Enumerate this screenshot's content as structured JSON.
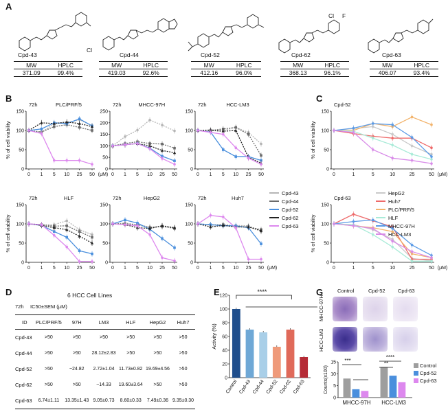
{
  "panels": {
    "a": "A",
    "b": "B",
    "c": "C",
    "d": "D",
    "e": "E",
    "g": "G"
  },
  "colors": {
    "cpd43": "#b5b5b5",
    "cpd44": "#6b6b6b",
    "cpd52": "#4a8fdd",
    "cpd62": "#222222",
    "cpd63": "#dd88ee",
    "hepg2": "#c9c9c9",
    "huh7": "#ee6a6a",
    "plc": "#f2b36b",
    "hlf": "#a9ebd8",
    "mhcc": "#5b9be6",
    "hcclm3": "#d88be8"
  },
  "compounds": [
    {
      "name": "Cpd-43",
      "mw_header": "MW",
      "hplc_header": "HPLC",
      "mw": "371.09",
      "hplc": "99.4%"
    },
    {
      "name": "Cpd-44",
      "mw_header": "MW",
      "hplc_header": "HPLC",
      "mw": "419.03",
      "hplc": "92.6%",
      "sub": "Cl"
    },
    {
      "name": "Cpd-52",
      "mw_header": "MW",
      "hplc_header": "HPLC",
      "mw": "412.16",
      "hplc": "96.0%"
    },
    {
      "name": "Cpd-62",
      "mw_header": "MW",
      "hplc_header": "HPLC",
      "mw": "368.13",
      "hplc": "96.1%",
      "sub": "Cl",
      "sub2": "F"
    },
    {
      "name": "Cpd-63",
      "mw_header": "MW",
      "hplc_header": "HPLC",
      "mw": "406.07",
      "hplc": "93.4%"
    }
  ],
  "chart_data": [
    {
      "type": "line",
      "title": "PLC/PRF/5",
      "time": "72h",
      "xlabel": "(μM)",
      "ylabel": "% of cell viability",
      "categories": [
        "0",
        "1",
        "5",
        "10",
        "25",
        "50"
      ],
      "ylim": [
        0,
        150
      ],
      "yticks": [
        "0",
        "50",
        "100",
        "150"
      ],
      "series": [
        {
          "name": "Cpd-43",
          "values": [
            100,
            95,
            118,
            120,
            128,
            112
          ]
        },
        {
          "name": "Cpd-44",
          "values": [
            100,
            96,
            110,
            115,
            108,
            100
          ]
        },
        {
          "name": "Cpd-52",
          "values": [
            100,
            104,
            120,
            118,
            130,
            112
          ]
        },
        {
          "name": "Cpd-62",
          "values": [
            100,
            120,
            118,
            122,
            118,
            110
          ]
        },
        {
          "name": "Cpd-63",
          "values": [
            100,
            92,
            22,
            22,
            22,
            12
          ]
        }
      ]
    },
    {
      "type": "line",
      "title": "MHCC-97H",
      "time": "72h",
      "xlabel": "",
      "ylabel": "",
      "categories": [
        "0",
        "1",
        "5",
        "10",
        "25",
        "50"
      ],
      "ylim": [
        0,
        250
      ],
      "yticks": [
        "0",
        "50",
        "100",
        "150",
        "200",
        "250"
      ],
      "series": [
        {
          "name": "Cpd-43",
          "values": [
            100,
            140,
            168,
            212,
            190,
            165
          ]
        },
        {
          "name": "Cpd-44",
          "values": [
            100,
            110,
            118,
            110,
            108,
            90
          ]
        },
        {
          "name": "Cpd-52",
          "values": [
            100,
            105,
            110,
            90,
            55,
            35
          ]
        },
        {
          "name": "Cpd-62",
          "values": [
            100,
            105,
            110,
            100,
            80,
            70
          ]
        },
        {
          "name": "Cpd-63",
          "values": [
            100,
            105,
            110,
            88,
            45,
            20
          ]
        }
      ]
    },
    {
      "type": "line",
      "title": "HCC-LM3",
      "time": "72h",
      "xlabel": "",
      "ylabel": "",
      "categories": [
        "0",
        "1",
        "5",
        "10",
        "25",
        "50"
      ],
      "ylim": [
        0,
        150
      ],
      "yticks": [
        "0",
        "50",
        "100",
        "150"
      ],
      "series": [
        {
          "name": "Cpd-43",
          "values": [
            100,
            102,
            100,
            108,
            95,
            65
          ]
        },
        {
          "name": "Cpd-44",
          "values": [
            100,
            100,
            104,
            108,
            90,
            35
          ]
        },
        {
          "name": "Cpd-52",
          "values": [
            100,
            96,
            50,
            32,
            32,
            22
          ]
        },
        {
          "name": "Cpd-62",
          "values": [
            100,
            100,
            98,
            100,
            30,
            15
          ]
        },
        {
          "name": "Cpd-63",
          "values": [
            100,
            95,
            90,
            55,
            28,
            12
          ]
        }
      ]
    },
    {
      "type": "line",
      "title": "HLF",
      "time": "72h",
      "xlabel": "",
      "ylabel": "% of cell viability",
      "categories": [
        "0",
        "1",
        "5",
        "10",
        "25",
        "50"
      ],
      "ylim": [
        0,
        150
      ],
      "yticks": [
        "0",
        "50",
        "100",
        "150"
      ],
      "series": [
        {
          "name": "Cpd-43",
          "values": [
            100,
            97,
            98,
            108,
            85,
            72
          ]
        },
        {
          "name": "Cpd-44",
          "values": [
            100,
            98,
            94,
            95,
            80,
            65
          ]
        },
        {
          "name": "Cpd-52",
          "values": [
            100,
            96,
            80,
            65,
            30,
            22
          ]
        },
        {
          "name": "Cpd-62",
          "values": [
            100,
            96,
            90,
            85,
            68,
            50
          ]
        },
        {
          "name": "Cpd-63",
          "values": [
            100,
            98,
            70,
            40,
            2,
            2
          ]
        }
      ]
    },
    {
      "type": "line",
      "title": "HepG2",
      "time": "72h",
      "xlabel": "",
      "ylabel": "",
      "categories": [
        "0",
        "1",
        "5",
        "10",
        "25",
        "50"
      ],
      "ylim": [
        0,
        150
      ],
      "yticks": [
        "0",
        "50",
        "100",
        "150"
      ],
      "series": [
        {
          "name": "Cpd-43",
          "values": [
            100,
            102,
            98,
            92,
            92,
            90
          ]
        },
        {
          "name": "Cpd-44",
          "values": [
            100,
            100,
            98,
            90,
            94,
            88
          ]
        },
        {
          "name": "Cpd-52",
          "values": [
            100,
            110,
            102,
            86,
            62,
            38
          ]
        },
        {
          "name": "Cpd-62",
          "values": [
            100,
            98,
            90,
            88,
            95,
            90
          ]
        },
        {
          "name": "Cpd-63",
          "values": [
            100,
            98,
            95,
            72,
            12,
            4
          ]
        }
      ]
    },
    {
      "type": "line",
      "title": "Huh7",
      "time": "72h",
      "xlabel": "(μM)",
      "ylabel": "",
      "categories": [
        "0",
        "1",
        "5",
        "10",
        "25",
        "50"
      ],
      "ylim": [
        0,
        150
      ],
      "yticks": [
        "0",
        "50",
        "100",
        "150"
      ],
      "series": [
        {
          "name": "Cpd-43",
          "values": [
            100,
            98,
            97,
            96,
            95,
            80
          ]
        },
        {
          "name": "Cpd-44",
          "values": [
            100,
            97,
            98,
            92,
            92,
            85
          ]
        },
        {
          "name": "Cpd-52",
          "values": [
            100,
            98,
            95,
            95,
            90,
            48
          ]
        },
        {
          "name": "Cpd-62",
          "values": [
            100,
            92,
            96,
            92,
            92,
            82
          ]
        },
        {
          "name": "Cpd-63",
          "values": [
            100,
            122,
            118,
            90,
            8,
            8
          ]
        }
      ]
    },
    {
      "type": "line",
      "title": "Cpd-52",
      "xlabel": "(μM)",
      "ylabel": "% of cell viability",
      "categories": [
        "0",
        "1",
        "5",
        "10",
        "25",
        "50"
      ],
      "ylim": [
        0,
        150
      ],
      "yticks": [
        "0",
        "50",
        "100",
        "150"
      ],
      "series": [
        {
          "name": "HepG2",
          "values": [
            100,
            105,
            110,
            90,
            60,
            38
          ]
        },
        {
          "name": "Huh7",
          "values": [
            100,
            92,
            85,
            80,
            80,
            55
          ]
        },
        {
          "name": "PLC/PRF/5",
          "values": [
            100,
            100,
            118,
            110,
            135,
            115
          ]
        },
        {
          "name": "HLF",
          "values": [
            100,
            98,
            80,
            62,
            38,
            25
          ]
        },
        {
          "name": "MHCC-97H",
          "values": [
            100,
            106,
            118,
            115,
            82,
            32
          ]
        },
        {
          "name": "HCC-LM3",
          "values": [
            100,
            95,
            50,
            28,
            22,
            14
          ]
        }
      ]
    },
    {
      "type": "line",
      "title": "Cpd-63",
      "xlabel": "(μM)",
      "ylabel": "% of cell viability",
      "categories": [
        "0",
        "1",
        "5",
        "10",
        "25",
        "50"
      ],
      "ylim": [
        0,
        150
      ],
      "yticks": [
        "0",
        "50",
        "100",
        "150"
      ],
      "series": [
        {
          "name": "HepG2",
          "values": [
            100,
            98,
            85,
            60,
            10,
            4
          ]
        },
        {
          "name": "Huh7",
          "values": [
            100,
            125,
            108,
            92,
            8,
            8
          ]
        },
        {
          "name": "PLC/PRF/5",
          "values": [
            100,
            95,
            90,
            80,
            22,
            12
          ]
        },
        {
          "name": "HLF",
          "values": [
            100,
            98,
            72,
            40,
            3,
            3
          ]
        },
        {
          "name": "MHCC-97H",
          "values": [
            100,
            106,
            110,
            88,
            45,
            18
          ]
        },
        {
          "name": "HCC-LM3",
          "values": [
            100,
            95,
            88,
            55,
            28,
            12
          ]
        }
      ]
    },
    {
      "type": "bar",
      "ylabel": "Activity (%)",
      "categories": [
        "Control",
        "Cpd-43",
        "Cpd-44",
        "Cpd-52",
        "Cpd-62",
        "Cpd-63"
      ],
      "values": [
        100,
        70,
        66,
        45,
        70,
        30
      ],
      "colors": [
        "#1f4e8c",
        "#6fa8d6",
        "#a9cfe8",
        "#ef9a7a",
        "#e06a5a",
        "#b52b36"
      ],
      "ylim": [
        0,
        120
      ],
      "yticks": [
        "0",
        "20",
        "40",
        "60",
        "80",
        "100",
        "120"
      ],
      "significance": "****"
    },
    {
      "type": "bar",
      "ylabel": "Counts(x100)",
      "categories": [
        "MHCC-97H",
        "HCC-LM3"
      ],
      "ylim": [
        0,
        15
      ],
      "yticks": [
        "0",
        "5",
        "10",
        "15"
      ],
      "series": [
        {
          "name": "Control",
          "values": [
            8,
            12.8
          ]
        },
        {
          "name": "Cpd-52",
          "values": [
            3.5,
            9.2
          ]
        },
        {
          "name": "Cpd-63",
          "values": [
            2.8,
            6.5
          ]
        }
      ],
      "significance": [
        "***",
        "****",
        "**"
      ]
    }
  ],
  "legend_b": [
    "Cpd-43",
    "Cpd-44",
    "Cpd-52",
    "Cpd-62",
    "Cpd-63"
  ],
  "legend_c": [
    "HepG2",
    "Huh7",
    "PLC/PRF/5",
    "HLF",
    "MHCC-97H",
    "HCC-LM3"
  ],
  "panel_d": {
    "title": "6 HCC Cell Lines",
    "subtitle_time": "72h",
    "subtitle_metric": "IC50±SEM (μM)",
    "headers": [
      "ID",
      "PLC/PRF/5",
      "97H",
      "LM3",
      "HLF",
      "HepG2",
      "Huh7"
    ],
    "rows": [
      [
        "Cpd-43",
        ">50",
        ">50",
        ">50",
        ">50",
        ">50",
        ">50"
      ],
      [
        "Cpd-44",
        ">50",
        ">50",
        "28.12±2.83",
        ">50",
        ">50",
        ">50"
      ],
      [
        "Cpd-52",
        ">50",
        "~24.82",
        "2.72±1.04",
        "11.73±0.82",
        "19.69±4.56",
        ">50"
      ],
      [
        "Cpd-62",
        ">50",
        ">50",
        "~14.33",
        "19.60±3.64",
        ">50",
        ">50"
      ],
      [
        "Cpd-63",
        "6.74±1.11",
        "13.35±1.43",
        "9.05±0.73",
        "8.60±0.33",
        "7.49±0.36",
        "9.35±0.30"
      ]
    ]
  },
  "panel_g": {
    "columns": [
      "Control",
      "Cpd-52",
      "Cpd-63"
    ],
    "rows": [
      "MHCC-97H",
      "HCC-LM3"
    ],
    "legend": [
      "Control",
      "Cpd-52",
      "Cpd-63"
    ]
  }
}
